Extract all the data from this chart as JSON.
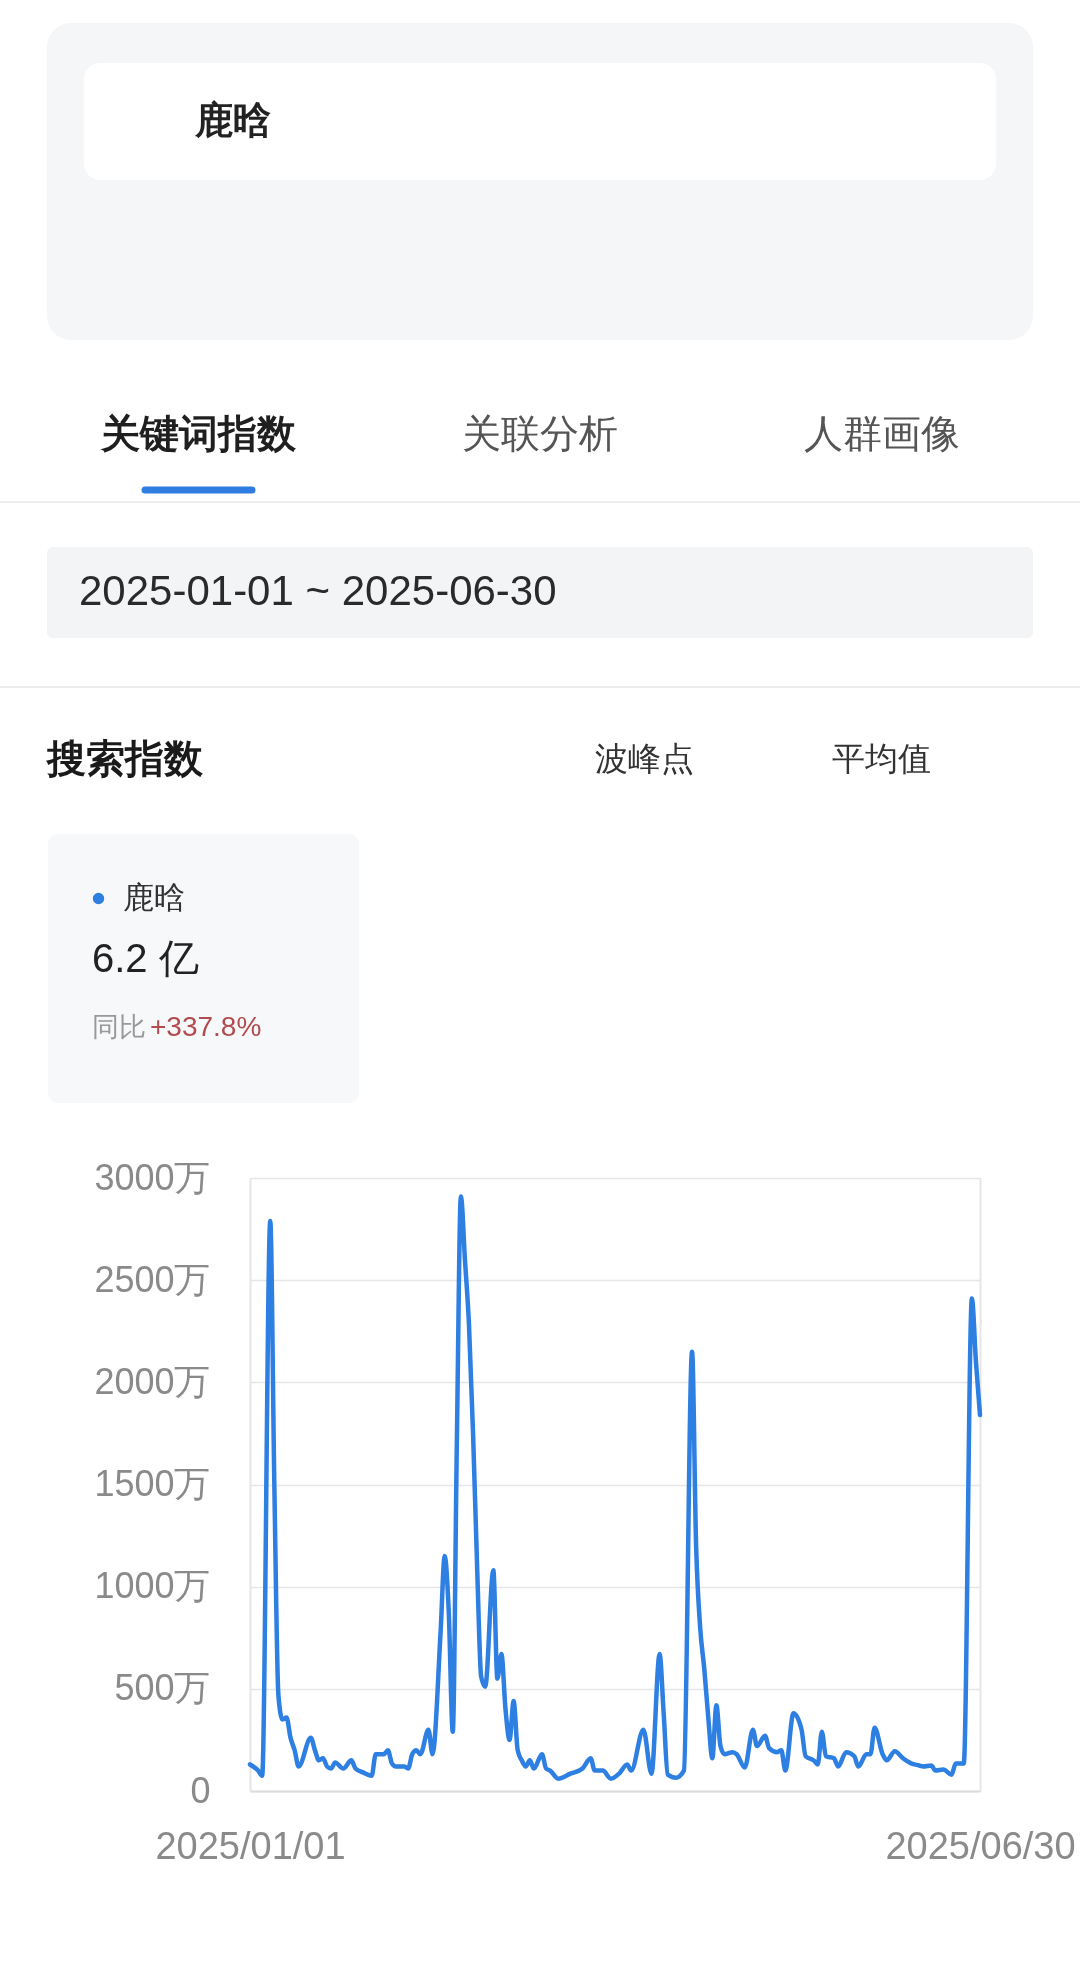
{
  "chart_data": {
    "type": "line",
    "title": "搜索指数",
    "annotations": [
      "鹿晗",
      "关键词指数",
      "关联分析",
      "人群画像",
      "2025-01-01 ~ 2025-06-30",
      "波峰点",
      "平均值",
      "6.2 亿",
      "同比",
      "+337.8%"
    ],
    "x": [
      "2025-01-01",
      "2025-01-03",
      "2025-01-04",
      "2025-01-06",
      "2025-01-07",
      "2025-01-08",
      "2025-01-09",
      "2025-01-10",
      "2025-01-11",
      "2025-01-12",
      "2025-01-13",
      "2025-01-16",
      "2025-01-17",
      "2025-01-18",
      "2025-01-19",
      "2025-01-20",
      "2025-01-21",
      "2025-01-22",
      "2025-01-24",
      "2025-01-26",
      "2025-01-27",
      "2025-01-29",
      "2025-01-31",
      "2025-02-01",
      "2025-02-03",
      "2025-02-04",
      "2025-02-05",
      "2025-02-06",
      "2025-02-08",
      "2025-02-09",
      "2025-02-10",
      "2025-02-11",
      "2025-02-12",
      "2025-02-14",
      "2025-02-15",
      "2025-02-17",
      "2025-02-18",
      "2025-02-19",
      "2025-02-20",
      "2025-02-21",
      "2025-02-22",
      "2025-02-23",
      "2025-02-24",
      "2025-02-25",
      "2025-02-26",
      "2025-02-27",
      "2025-02-28",
      "2025-03-02",
      "2025-03-03",
      "2025-03-04",
      "2025-03-05",
      "2025-03-06",
      "2025-03-07",
      "2025-03-08",
      "2025-03-09",
      "2025-03-10",
      "2025-03-11",
      "2025-03-12",
      "2025-03-14",
      "2025-03-15",
      "2025-03-16",
      "2025-03-18",
      "2025-03-21",
      "2025-03-24",
      "2025-03-26",
      "2025-03-27",
      "2025-03-29",
      "2025-03-31",
      "2025-04-02",
      "2025-04-04",
      "2025-04-05",
      "2025-04-08",
      "2025-04-10",
      "2025-04-12",
      "2025-04-13",
      "2025-04-14",
      "2025-04-16",
      "2025-04-18",
      "2025-04-20",
      "2025-04-21",
      "2025-04-22",
      "2025-04-23",
      "2025-04-24",
      "2025-04-25",
      "2025-04-26",
      "2025-04-27",
      "2025-04-28",
      "2025-04-30",
      "2025-05-01",
      "2025-05-03",
      "2025-05-05",
      "2025-05-06",
      "2025-05-08",
      "2025-05-09",
      "2025-05-11",
      "2025-05-12",
      "2025-05-13",
      "2025-05-15",
      "2025-05-17",
      "2025-05-18",
      "2025-05-20",
      "2025-05-21",
      "2025-05-22",
      "2025-05-23",
      "2025-05-25",
      "2025-05-26",
      "2025-05-28",
      "2025-05-30",
      "2025-05-31",
      "2025-06-02",
      "2025-06-03",
      "2025-06-04",
      "2025-06-06",
      "2025-06-07",
      "2025-06-09",
      "2025-06-11",
      "2025-06-13",
      "2025-06-15",
      "2025-06-16",
      "2025-06-18",
      "2025-06-19",
      "2025-06-21",
      "2025-06-23",
      "2025-06-24",
      "2025-06-26",
      "2025-06-28",
      "2025-06-29",
      "2025-06-30"
    ],
    "series": [
      {
        "name": "鹿晗",
        "color": "#2e7fe2",
        "values": [
          130,
          100,
          75,
          2790,
          1500,
          470,
          350,
          360,
          260,
          200,
          120,
          260,
          200,
          150,
          160,
          120,
          110,
          140,
          110,
          150,
          110,
          90,
          75,
          180,
          180,
          200,
          135,
          120,
          120,
          110,
          180,
          200,
          180,
          300,
          180,
          780,
          1150,
          880,
          290,
          1700,
          2910,
          2600,
          2280,
          1750,
          1100,
          560,
          510,
          1080,
          550,
          670,
          400,
          250,
          440,
          200,
          150,
          120,
          150,
          110,
          180,
          110,
          100,
          60,
          85,
          110,
          160,
          100,
          100,
          60,
          85,
          130,
          100,
          300,
          85,
          670,
          380,
          80,
          65,
          100,
          2150,
          1200,
          800,
          600,
          360,
          160,
          420,
          220,
          180,
          190,
          180,
          115,
          300,
          220,
          270,
          210,
          190,
          200,
          100,
          380,
          300,
          170,
          150,
          130,
          290,
          170,
          160,
          120,
          190,
          170,
          120,
          180,
          180,
          310,
          180,
          150,
          195,
          160,
          135,
          125,
          120,
          125,
          100,
          105,
          80,
          135,
          135,
          2410,
          2100,
          1840
        ]
      }
    ],
    "xlim": [
      "2025-01-01",
      "2025-06-30"
    ],
    "xticks": [
      {
        "value": "2025-01-01",
        "label": "2025/01/01"
      },
      {
        "value": "2025-06-30",
        "label": "2025/06/30"
      }
    ],
    "ylim": [
      0,
      3000
    ],
    "yticks": [
      {
        "value": 0,
        "label": "0"
      },
      {
        "value": 500,
        "label": "500万"
      },
      {
        "value": 1000,
        "label": "1000万"
      },
      {
        "value": 1500,
        "label": "1500万"
      },
      {
        "value": 2000,
        "label": "2000万"
      },
      {
        "value": 2500,
        "label": "2500万"
      },
      {
        "value": 3000,
        "label": "3000万"
      }
    ],
    "grid": true,
    "legend": "top left"
  }
}
